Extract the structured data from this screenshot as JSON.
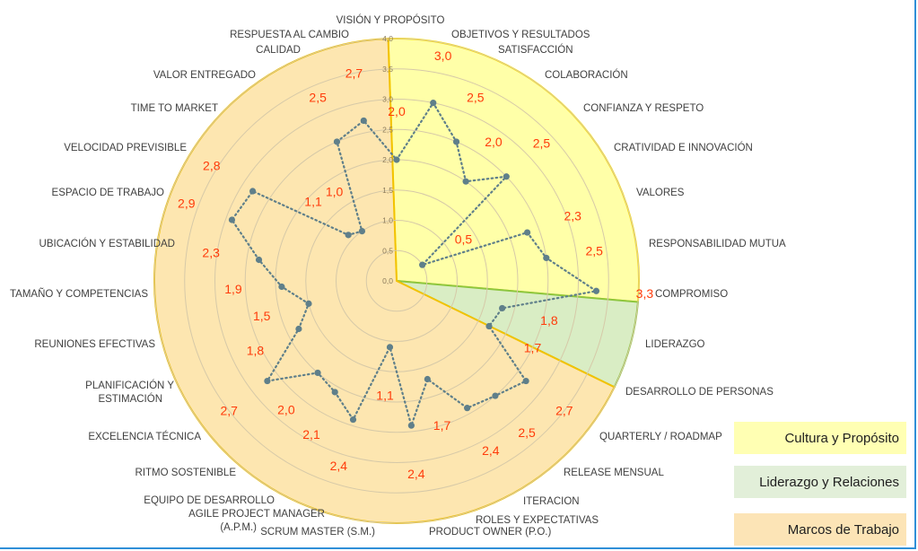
{
  "chart_data": {
    "type": "radar",
    "title": "",
    "categories": [
      "VISIÓN Y PROPÓSITO",
      "OBJETIVOS Y RESULTADOS",
      "SATISFACCIÓN",
      "COLABORACIÓN",
      "CONFIANZA Y RESPETO",
      "CRATIVIDAD E INNOVACIÓN",
      "VALORES",
      "RESPONSABILIDAD MUTUA",
      "COMPROMISO",
      "LIDERAZGO",
      "DESARROLLO DE PERSONAS",
      "QUARTERLY / ROADMAP",
      "RELEASE MENSUAL",
      "ITERACION",
      "ROLES Y EXPECTATIVAS",
      "PRODUCT OWNER (P.O.)",
      "SCRUM MASTER (S.M.)",
      "AGILE PROJECT MANAGER (A.P.M.)",
      "EQUIPO DE DESARROLLO",
      "RITMO SOSTENIBLE",
      "EXCELENCIA TÉCNICA",
      "PLANIFICACIÓN Y ESTIMACIÓN",
      "REUNIONES EFECTIVAS",
      "TAMAÑO Y COMPETENCIAS",
      "UBICACIÓN Y ESTABILIDAD",
      "ESPACIO DE TRABAJO",
      "VELOCIDAD PREVISIBLE",
      "TIME TO MARKET",
      "VALOR ENTREGADO",
      "CALIDAD",
      "RESPUESTA AL CAMBIO"
    ],
    "values": [
      2.0,
      3.0,
      2.5,
      2.0,
      2.5,
      0.5,
      2.3,
      2.5,
      3.3,
      1.8,
      1.7,
      2.7,
      2.5,
      2.4,
      1.7,
      2.4,
      1.1,
      2.4,
      2.1,
      2.0,
      2.7,
      1.8,
      1.5,
      1.9,
      2.3,
      2.9,
      2.8,
      1.1,
      1.0,
      2.5,
      2.7
    ],
    "value_labels": [
      "2,0",
      "3,0",
      "2,5",
      "2,0",
      "2,5",
      "0,5",
      "2,3",
      "2,5",
      "3,3",
      "1,8",
      "1,7",
      "2,7",
      "2,5",
      "2,4",
      "1,7",
      "2,4",
      "1,1",
      "2,4",
      "2,1",
      "2,0",
      "2,7",
      "1,8",
      "1,5",
      "1,9",
      "2,3",
      "2,9",
      "2,8",
      "1,1",
      "1,0",
      "2,5",
      "2,7"
    ],
    "rlim": [
      0,
      4
    ],
    "ticks": [
      "0,0",
      "0,5",
      "1,0",
      "1,5",
      "2,0",
      "2,5",
      "3,0",
      "3,5",
      "4,0"
    ],
    "grid": true,
    "legend_position": "bottom-right",
    "groups": [
      {
        "name": "Cultura y Propósito",
        "color": "#ffffa8",
        "border": "#ffe000",
        "from_category": 0,
        "to_category": 8
      },
      {
        "name": "Liderazgo y Relaciones",
        "color": "#d9edc4",
        "border": "#8dc63f",
        "from_category": 9,
        "to_category": 10
      },
      {
        "name": "Marcos de Trabajo",
        "color": "#fde6b0",
        "border": "#f2c200",
        "from_category": 11,
        "to_category": 30
      }
    ],
    "series_color": "#5f7f8a"
  },
  "legend": {
    "cultura": "Cultura y Propósito",
    "liderazgo": "Liderazgo y Relaciones",
    "marcos": "Marcos de Trabajo"
  }
}
